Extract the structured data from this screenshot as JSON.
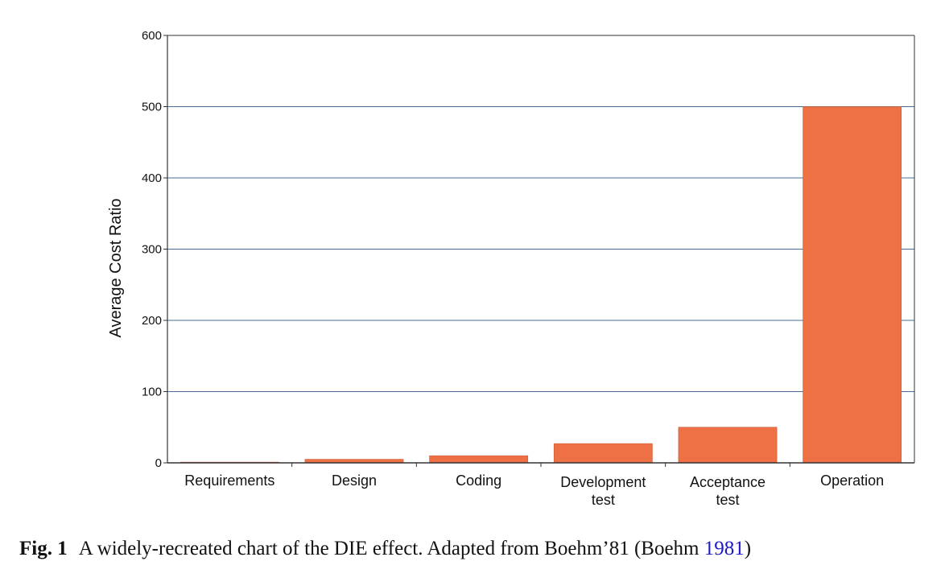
{
  "colors": {
    "bar": "#ee7045",
    "bar_stroke": "#c85a35",
    "grid": "#4a6e98",
    "axis": "#333333",
    "link": "#1a1ac8"
  },
  "chart_data": {
    "type": "bar",
    "categories": [
      "Requirements",
      "Design",
      "Coding",
      "Development test",
      "Acceptance test",
      "Operation"
    ],
    "category_lines": [
      [
        "Requirements"
      ],
      [
        "Design"
      ],
      [
        "Coding"
      ],
      [
        "Development",
        "test"
      ],
      [
        "Acceptance",
        "test"
      ],
      [
        "Operation"
      ]
    ],
    "values": [
      1,
      5,
      10,
      27,
      50,
      500
    ],
    "ylabel": "Average Cost Ratio",
    "xlabel": "",
    "ylim": [
      0,
      600
    ],
    "yticks": [
      0,
      100,
      200,
      300,
      400,
      500,
      600
    ],
    "grid": true
  },
  "caption": {
    "label": "Fig. 1",
    "text": "A widely-recreated chart of the DIE effect. Adapted from Boehm’81 (Boehm ",
    "year": "1981",
    "close": ")"
  }
}
